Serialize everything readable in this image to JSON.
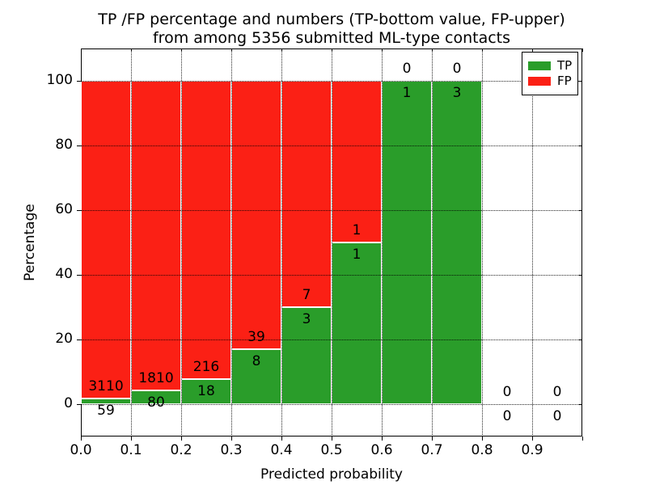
{
  "figure": {
    "title_line1": "TP /FP percentage and numbers (TP-bottom value, FP-upper)",
    "title_line2": "from among 5356 submitted ML-type contacts"
  },
  "chart_data": {
    "type": "bar",
    "stacked": true,
    "orientation": "vertical",
    "title": "TP /FP percentage and numbers (TP-bottom value, FP-upper) from among 5356 submitted ML-type contacts",
    "xlabel": "Predicted probability",
    "ylabel": "Percentage",
    "xlim": [
      0.0,
      1.0
    ],
    "ylim": [
      -10,
      110
    ],
    "x_tick_labels": [
      "0.0",
      "0.1",
      "0.2",
      "0.3",
      "0.4",
      "0.5",
      "0.6",
      "0.7",
      "0.8",
      "0.9"
    ],
    "y_ticks": [
      0,
      20,
      40,
      60,
      80,
      100
    ],
    "grid": "dotted",
    "colors": {
      "tp": "#2a9d2a",
      "fp": "#fb2015",
      "bar_edge": "#ffffff",
      "text": "#000000",
      "background": "#ffffff"
    },
    "total_contacts": 5356,
    "bins": [
      {
        "range": [
          0.0,
          0.1
        ],
        "tp": 59,
        "fp": 3110
      },
      {
        "range": [
          0.1,
          0.2
        ],
        "tp": 80,
        "fp": 1810
      },
      {
        "range": [
          0.2,
          0.3
        ],
        "tp": 18,
        "fp": 216
      },
      {
        "range": [
          0.3,
          0.4
        ],
        "tp": 8,
        "fp": 39
      },
      {
        "range": [
          0.4,
          0.5
        ],
        "tp": 3,
        "fp": 7
      },
      {
        "range": [
          0.5,
          0.6
        ],
        "tp": 1,
        "fp": 1
      },
      {
        "range": [
          0.6,
          0.7
        ],
        "tp": 1,
        "fp": 0
      },
      {
        "range": [
          0.7,
          0.8
        ],
        "tp": 3,
        "fp": 0
      },
      {
        "range": [
          0.8,
          0.9
        ],
        "tp": 0,
        "fp": 0
      },
      {
        "range": [
          0.9,
          1.0
        ],
        "tp": 0,
        "fp": 0
      }
    ],
    "legend": {
      "position": "upper right",
      "entries": [
        {
          "label": "TP",
          "color": "#2a9d2a"
        },
        {
          "label": "FP",
          "color": "#fb2015"
        }
      ]
    }
  }
}
